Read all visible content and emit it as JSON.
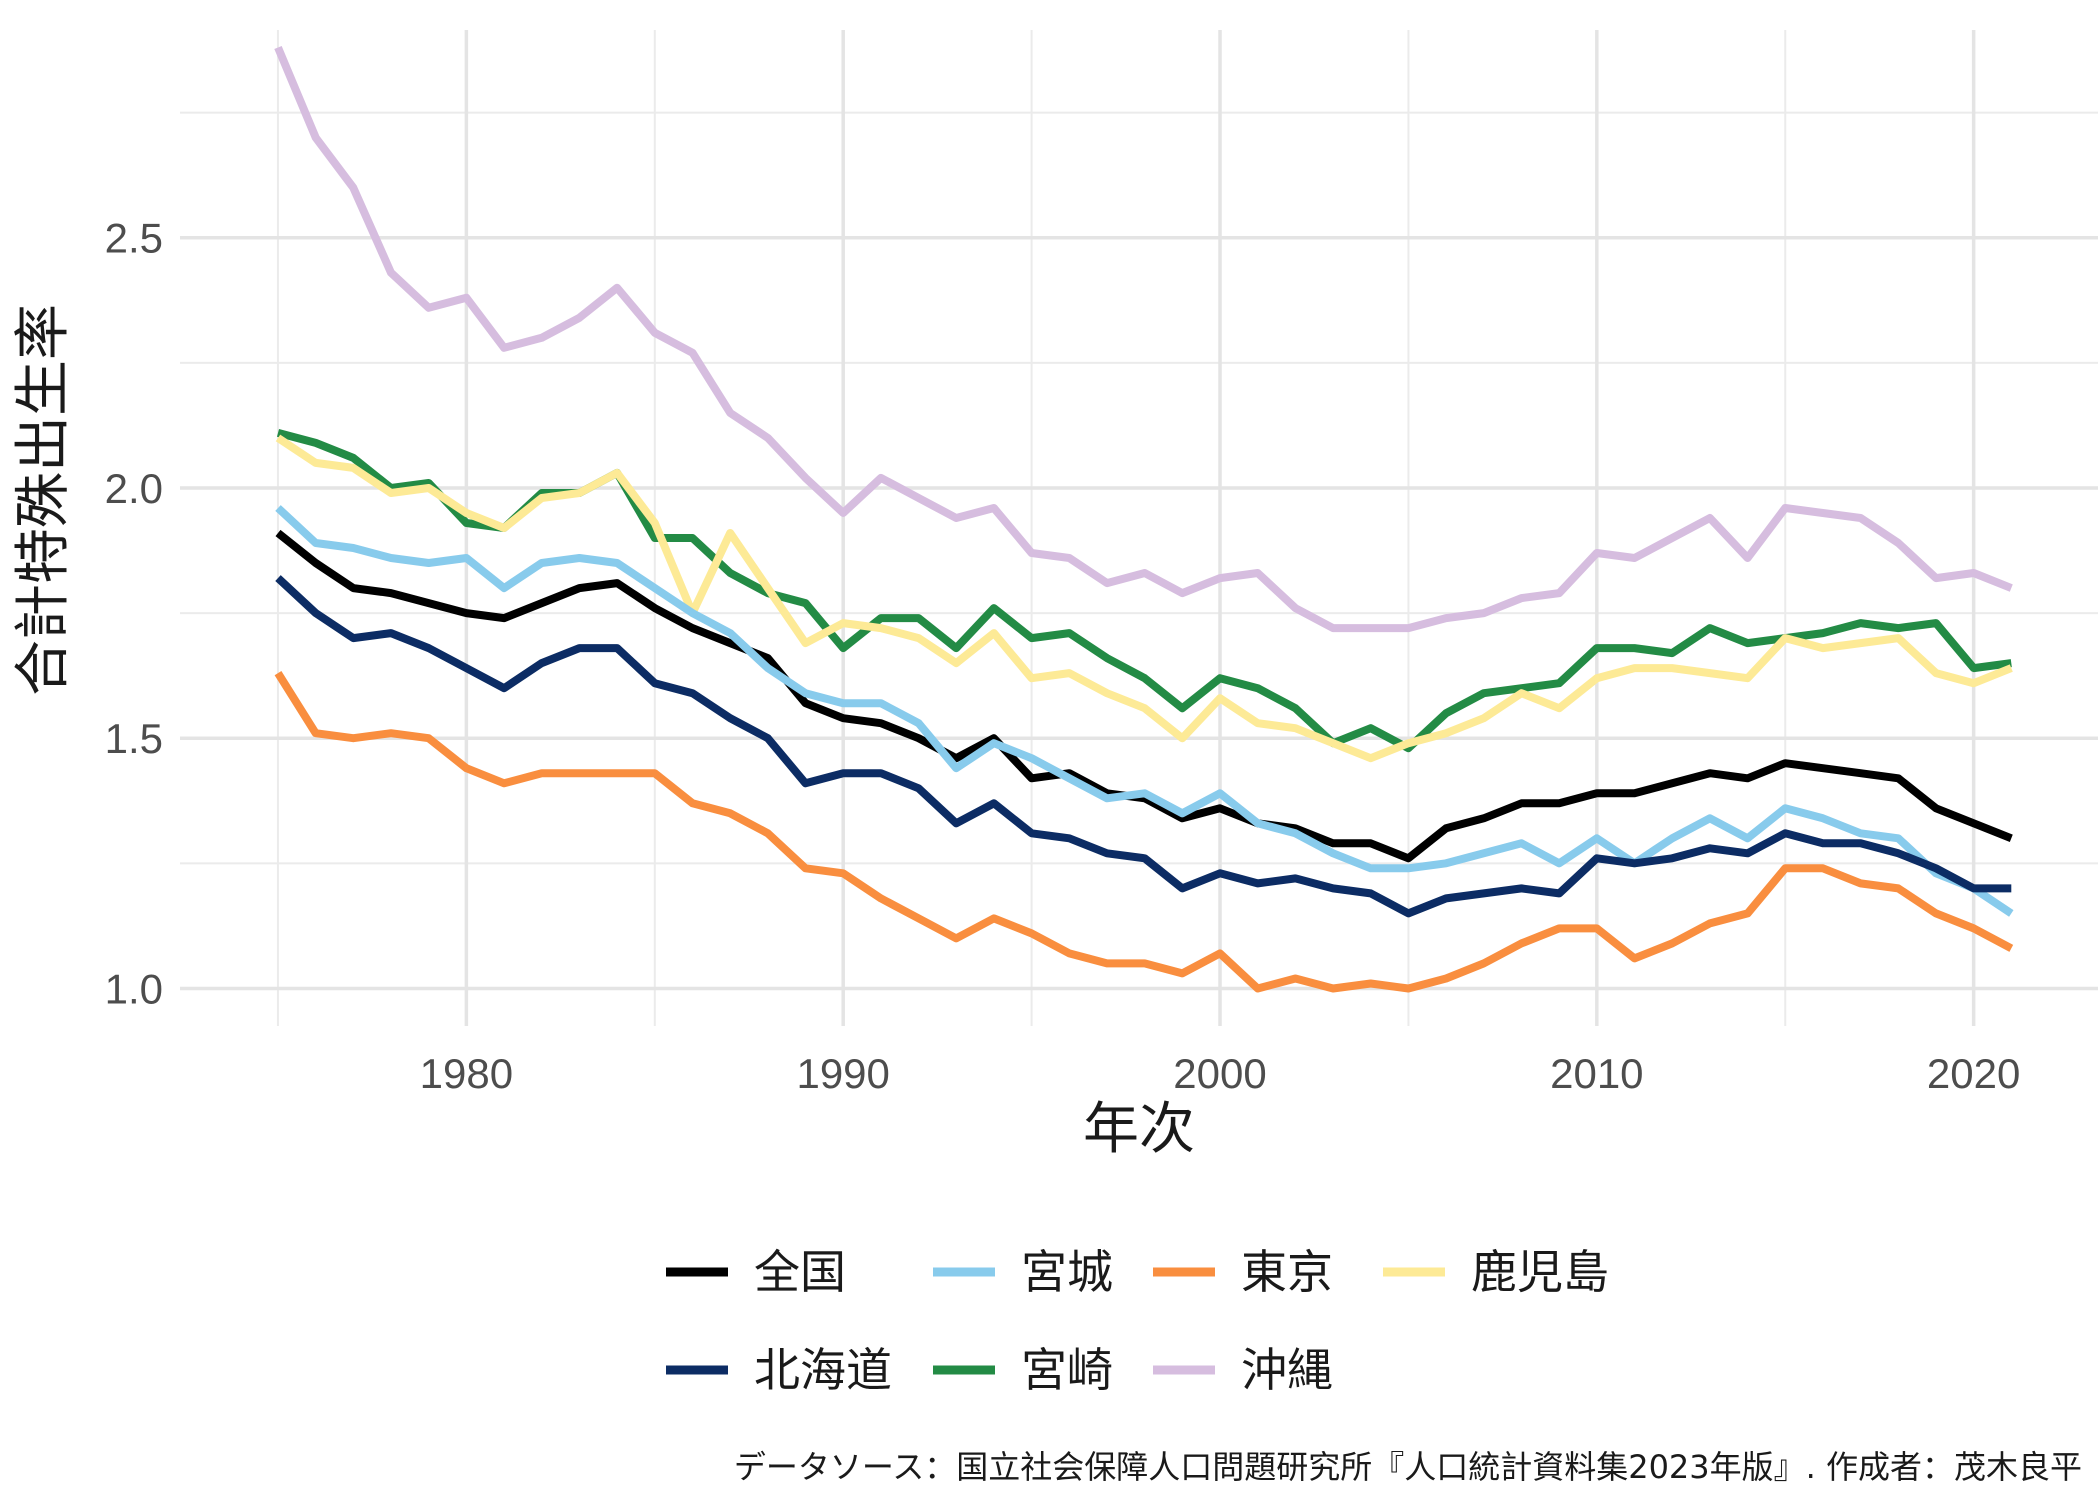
{
  "chart_data": {
    "type": "line",
    "title": "",
    "xlabel": "年次",
    "ylabel": "合計特殊出生率",
    "caption": "データソース：国立社会保障人口問題研究所『人口統計資料集2023年版』. 作成者：茂木良平",
    "xlim": [
      1972.4,
      2023.3
    ],
    "ylim": [
      0.925,
      2.915
    ],
    "x_ticks": [
      "1980",
      "1990",
      "2000",
      "2010",
      "2020"
    ],
    "y_ticks": [
      "1.0",
      "1.5",
      "2.0",
      "2.5"
    ],
    "grid": true,
    "legend_position": "bottom",
    "x": [
      1975,
      1976,
      1977,
      1978,
      1979,
      1980,
      1981,
      1982,
      1983,
      1984,
      1985,
      1986,
      1987,
      1988,
      1989,
      1990,
      1991,
      1992,
      1993,
      1994,
      1995,
      1996,
      1997,
      1998,
      1999,
      2000,
      2001,
      2002,
      2003,
      2004,
      2005,
      2006,
      2007,
      2008,
      2009,
      2010,
      2011,
      2012,
      2013,
      2014,
      2015,
      2016,
      2017,
      2018,
      2019,
      2020,
      2021
    ],
    "series": [
      {
        "name": "全国",
        "color": "#000000",
        "values": [
          1.91,
          1.85,
          1.8,
          1.79,
          1.77,
          1.75,
          1.74,
          1.77,
          1.8,
          1.81,
          1.76,
          1.72,
          1.69,
          1.66,
          1.57,
          1.54,
          1.53,
          1.5,
          1.46,
          1.5,
          1.42,
          1.43,
          1.39,
          1.38,
          1.34,
          1.36,
          1.33,
          1.32,
          1.29,
          1.29,
          1.26,
          1.32,
          1.34,
          1.37,
          1.37,
          1.39,
          1.39,
          1.41,
          1.43,
          1.42,
          1.45,
          1.44,
          1.43,
          1.42,
          1.36,
          1.33,
          1.3
        ]
      },
      {
        "name": "北海道",
        "color": "#0c2c64",
        "values": [
          1.82,
          1.75,
          1.7,
          1.71,
          1.68,
          1.64,
          1.6,
          1.65,
          1.68,
          1.68,
          1.61,
          1.59,
          1.54,
          1.5,
          1.41,
          1.43,
          1.43,
          1.4,
          1.33,
          1.37,
          1.31,
          1.3,
          1.27,
          1.26,
          1.2,
          1.23,
          1.21,
          1.22,
          1.2,
          1.19,
          1.15,
          1.18,
          1.19,
          1.2,
          1.19,
          1.26,
          1.25,
          1.26,
          1.28,
          1.27,
          1.31,
          1.29,
          1.29,
          1.27,
          1.24,
          1.2,
          1.2
        ]
      },
      {
        "name": "宮城",
        "color": "#88cbec",
        "values": [
          1.96,
          1.89,
          1.88,
          1.86,
          1.85,
          1.86,
          1.8,
          1.85,
          1.86,
          1.85,
          1.8,
          1.75,
          1.71,
          1.64,
          1.59,
          1.57,
          1.57,
          1.53,
          1.44,
          1.49,
          1.46,
          1.42,
          1.38,
          1.39,
          1.35,
          1.39,
          1.33,
          1.31,
          1.27,
          1.24,
          1.24,
          1.25,
          1.27,
          1.29,
          1.25,
          1.3,
          1.25,
          1.3,
          1.34,
          1.3,
          1.36,
          1.34,
          1.31,
          1.3,
          1.23,
          1.2,
          1.15
        ]
      },
      {
        "name": "宮崎",
        "color": "#238b45",
        "values": [
          2.11,
          2.09,
          2.06,
          2.0,
          2.01,
          1.93,
          1.92,
          1.99,
          1.99,
          2.03,
          1.9,
          1.9,
          1.83,
          1.79,
          1.77,
          1.68,
          1.74,
          1.74,
          1.68,
          1.76,
          1.7,
          1.71,
          1.66,
          1.62,
          1.56,
          1.62,
          1.6,
          1.56,
          1.49,
          1.52,
          1.48,
          1.55,
          1.59,
          1.6,
          1.61,
          1.68,
          1.68,
          1.67,
          1.72,
          1.69,
          1.7,
          1.71,
          1.73,
          1.72,
          1.73,
          1.64,
          1.65
        ]
      },
      {
        "name": "東京",
        "color": "#f98e3f",
        "values": [
          1.63,
          1.51,
          1.5,
          1.51,
          1.5,
          1.44,
          1.41,
          1.43,
          1.43,
          1.43,
          1.43,
          1.37,
          1.35,
          1.31,
          1.24,
          1.23,
          1.18,
          1.14,
          1.1,
          1.14,
          1.11,
          1.07,
          1.05,
          1.05,
          1.03,
          1.07,
          1.0,
          1.02,
          1.0,
          1.01,
          1.0,
          1.02,
          1.05,
          1.09,
          1.12,
          1.12,
          1.06,
          1.09,
          1.13,
          1.15,
          1.24,
          1.24,
          1.21,
          1.2,
          1.15,
          1.12,
          1.08
        ]
      },
      {
        "name": "沖縄",
        "color": "#d6bddf",
        "values": [
          2.88,
          2.7,
          2.6,
          2.43,
          2.36,
          2.38,
          2.28,
          2.3,
          2.34,
          2.4,
          2.31,
          2.27,
          2.15,
          2.1,
          2.02,
          1.95,
          2.02,
          1.98,
          1.94,
          1.96,
          1.87,
          1.86,
          1.81,
          1.83,
          1.79,
          1.82,
          1.83,
          1.76,
          1.72,
          1.72,
          1.72,
          1.74,
          1.75,
          1.78,
          1.79,
          1.87,
          1.86,
          1.9,
          1.94,
          1.86,
          1.96,
          1.95,
          1.94,
          1.89,
          1.82,
          1.83,
          1.8
        ]
      },
      {
        "name": "鹿児島",
        "color": "#fdea96",
        "values": [
          2.1,
          2.05,
          2.04,
          1.99,
          2.0,
          1.95,
          1.92,
          1.98,
          1.99,
          2.03,
          1.93,
          1.75,
          1.91,
          1.8,
          1.69,
          1.73,
          1.72,
          1.7,
          1.65,
          1.71,
          1.62,
          1.63,
          1.59,
          1.56,
          1.5,
          1.58,
          1.53,
          1.52,
          1.49,
          1.46,
          1.49,
          1.51,
          1.54,
          1.59,
          1.56,
          1.62,
          1.64,
          1.64,
          1.63,
          1.62,
          1.7,
          1.68,
          1.69,
          1.7,
          1.63,
          1.61,
          1.64
        ]
      }
    ],
    "legend_order": [
      "全国",
      "宮城",
      "東京",
      "鹿児島",
      "北海道",
      "宮崎",
      "沖縄"
    ]
  }
}
